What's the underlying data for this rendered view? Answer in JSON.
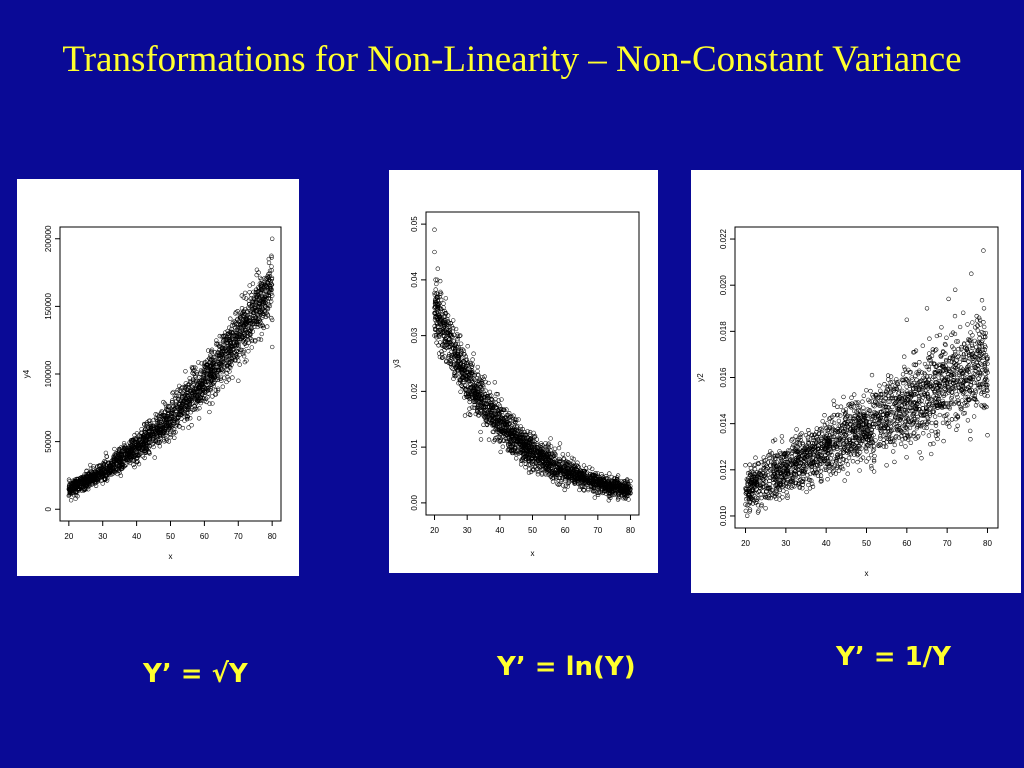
{
  "slide": {
    "title": "Transformations for Non-Linearity – Non-Constant Variance",
    "title_color": "#ffff2e",
    "background": "#0a0a96"
  },
  "captions": [
    "Y’ = √Y",
    "Y’ = ln(Y)",
    "Y’ = 1/Y"
  ],
  "chart_data": [
    {
      "type": "scatter",
      "xlabel": "x",
      "ylabel": "y4",
      "xlim": [
        20,
        80
      ],
      "ylim": [
        0,
        200000
      ],
      "xticks": [
        20,
        30,
        40,
        50,
        60,
        70,
        80
      ],
      "yticks": [
        0,
        50000,
        100000,
        150000,
        200000
      ],
      "point_color": "#000000",
      "trend": "y ≈ 25·x²; spread grows with x, y ≈ 15000 at x=20 to ≈ 155000 at x=80",
      "points": [
        [
          20,
          15000
        ],
        [
          20,
          10000
        ],
        [
          21,
          19000
        ],
        [
          22,
          13000
        ],
        [
          25,
          18000
        ],
        [
          25,
          23000
        ],
        [
          28,
          22000
        ],
        [
          30,
          24000
        ],
        [
          30,
          19000
        ],
        [
          33,
          30000
        ],
        [
          35,
          32000
        ],
        [
          35,
          27000
        ],
        [
          38,
          36000
        ],
        [
          40,
          40000
        ],
        [
          40,
          35000
        ],
        [
          43,
          45000
        ],
        [
          45,
          52000
        ],
        [
          45,
          46000
        ],
        [
          48,
          58000
        ],
        [
          50,
          62000
        ],
        [
          50,
          55000
        ],
        [
          53,
          70000
        ],
        [
          55,
          76000
        ],
        [
          55,
          68000
        ],
        [
          58,
          84000
        ],
        [
          60,
          90000
        ],
        [
          60,
          80000
        ],
        [
          63,
          98000
        ],
        [
          65,
          106000
        ],
        [
          65,
          95000
        ],
        [
          68,
          112000
        ],
        [
          70,
          122000
        ],
        [
          70,
          110000
        ],
        [
          73,
          130000
        ],
        [
          75,
          140000
        ],
        [
          75,
          125000
        ],
        [
          78,
          150000
        ],
        [
          80,
          158000
        ],
        [
          80,
          140000
        ],
        [
          80,
          200000
        ],
        [
          79,
          185000
        ],
        [
          76,
          175000
        ],
        [
          72,
          160000
        ],
        [
          80,
          120000
        ],
        [
          70,
          95000
        ]
      ]
    },
    {
      "type": "scatter",
      "xlabel": "x",
      "ylabel": "y3",
      "xlim": [
        20,
        80
      ],
      "ylim": [
        0,
        0.05
      ],
      "xticks": [
        20,
        30,
        40,
        50,
        60,
        70,
        80
      ],
      "yticks": [
        0.0,
        0.01,
        0.02,
        0.03,
        0.04,
        0.05
      ],
      "point_color": "#000000",
      "trend": "y decreasing convex from ≈ 0.035 at x=20 to ≈ 0.002 at x=80, spread shrinks with x",
      "points": [
        [
          20,
          0.045
        ],
        [
          20,
          0.035
        ],
        [
          20,
          0.03
        ],
        [
          21,
          0.042
        ],
        [
          22,
          0.033
        ],
        [
          23,
          0.028
        ],
        [
          25,
          0.03
        ],
        [
          25,
          0.025
        ],
        [
          27,
          0.026
        ],
        [
          28,
          0.022
        ],
        [
          30,
          0.024
        ],
        [
          30,
          0.019
        ],
        [
          32,
          0.02
        ],
        [
          33,
          0.017
        ],
        [
          35,
          0.018
        ],
        [
          35,
          0.014
        ],
        [
          38,
          0.014
        ],
        [
          40,
          0.013
        ],
        [
          40,
          0.011
        ],
        [
          43,
          0.01
        ],
        [
          45,
          0.009
        ],
        [
          45,
          0.008
        ],
        [
          48,
          0.008
        ],
        [
          50,
          0.007
        ],
        [
          50,
          0.006
        ],
        [
          53,
          0.006
        ],
        [
          55,
          0.005
        ],
        [
          58,
          0.0045
        ],
        [
          60,
          0.004
        ],
        [
          63,
          0.0035
        ],
        [
          65,
          0.003
        ],
        [
          68,
          0.003
        ],
        [
          70,
          0.0028
        ],
        [
          73,
          0.0025
        ],
        [
          75,
          0.0022
        ],
        [
          78,
          0.002
        ],
        [
          80,
          0.0018
        ],
        [
          20,
          0.049
        ]
      ]
    },
    {
      "type": "scatter",
      "xlabel": "x",
      "ylabel": "y2",
      "xlim": [
        20,
        80
      ],
      "ylim": [
        0.01,
        0.022
      ],
      "xticks": [
        20,
        30,
        40,
        50,
        60,
        70,
        80
      ],
      "yticks": [
        0.01,
        0.012,
        0.014,
        0.016,
        0.018,
        0.02,
        0.022
      ],
      "point_color": "#000000",
      "trend": "y increasing roughly linearly from ≈ 0.011 at x=20 to ≈ 0.0165 at x=80, spread grows with x",
      "points": [
        [
          20,
          0.0112
        ],
        [
          20,
          0.0105
        ],
        [
          20,
          0.0122
        ],
        [
          22,
          0.0115
        ],
        [
          25,
          0.0118
        ],
        [
          25,
          0.0108
        ],
        [
          28,
          0.012
        ],
        [
          30,
          0.0121
        ],
        [
          30,
          0.0113
        ],
        [
          33,
          0.0125
        ],
        [
          35,
          0.0126
        ],
        [
          35,
          0.0116
        ],
        [
          38,
          0.0129
        ],
        [
          40,
          0.013
        ],
        [
          40,
          0.012
        ],
        [
          43,
          0.0133
        ],
        [
          45,
          0.0135
        ],
        [
          45,
          0.0124
        ],
        [
          48,
          0.0138
        ],
        [
          50,
          0.014
        ],
        [
          50,
          0.0128
        ],
        [
          53,
          0.0142
        ],
        [
          55,
          0.0144
        ],
        [
          55,
          0.0132
        ],
        [
          58,
          0.0147
        ],
        [
          60,
          0.0149
        ],
        [
          60,
          0.0136
        ],
        [
          63,
          0.0152
        ],
        [
          65,
          0.0153
        ],
        [
          65,
          0.014
        ],
        [
          68,
          0.0157
        ],
        [
          70,
          0.0158
        ],
        [
          70,
          0.0144
        ],
        [
          73,
          0.0162
        ],
        [
          75,
          0.0163
        ],
        [
          75,
          0.0148
        ],
        [
          78,
          0.0168
        ],
        [
          80,
          0.0168
        ],
        [
          80,
          0.0152
        ],
        [
          80,
          0.0226
        ],
        [
          79,
          0.0215
        ],
        [
          76,
          0.0205
        ],
        [
          72,
          0.0198
        ],
        [
          65,
          0.019
        ],
        [
          60,
          0.0185
        ],
        [
          80,
          0.0135
        ]
      ]
    }
  ]
}
